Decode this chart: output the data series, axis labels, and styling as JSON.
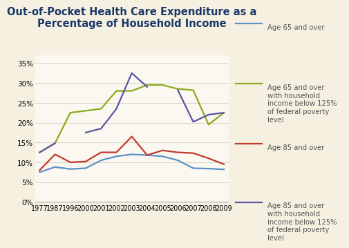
{
  "title": "Out-of-Pocket Health Care Expenditure as a\nPercentage of Household Income",
  "x_labels": [
    "1977",
    "1987",
    "1996",
    "2000",
    "2001",
    "2002",
    "2003",
    "2004",
    "2005",
    "2006",
    "2007",
    "2008",
    "2009"
  ],
  "series": [
    {
      "label": "Age 65 and over",
      "color": "#5b8fc9",
      "values": [
        7.5,
        8.8,
        8.3,
        8.5,
        10.5,
        11.5,
        12.0,
        11.8,
        11.5,
        10.5,
        8.5,
        8.4,
        8.2
      ]
    },
    {
      "label": "Age 65 and over\nwith household\nincome below 125%\nof federal poverty\nlevel",
      "color": "#8aaa1c",
      "values": [
        12.5,
        14.8,
        22.5,
        23.0,
        23.5,
        28.0,
        28.0,
        29.5,
        29.5,
        28.5,
        28.2,
        19.5,
        22.5
      ]
    },
    {
      "label": "Age 85 and over",
      "color": "#c0392b",
      "values": [
        8.0,
        12.0,
        10.0,
        10.2,
        12.5,
        12.5,
        16.5,
        11.8,
        13.0,
        12.5,
        12.3,
        11.0,
        9.5
      ]
    },
    {
      "label": "Age 85 and over\nwith household\nincome below 125%\nof federal poverty\nlevel",
      "color": "#5855a0",
      "values": [
        12.5,
        14.8,
        null,
        17.5,
        18.5,
        23.5,
        32.5,
        29.0,
        null,
        28.2,
        20.2,
        22.0,
        22.5
      ]
    }
  ],
  "ylim": [
    0,
    37
  ],
  "yticks": [
    0,
    5,
    10,
    15,
    20,
    25,
    30,
    35
  ],
  "ytick_labels": [
    "0%",
    "5%",
    "10%",
    "15%",
    "20%",
    "25%",
    "30%",
    "35%"
  ],
  "background_color": "#f5f0e0",
  "plot_bg_color": "#faf8f0",
  "title_color": "#1a3869",
  "legend_fontsize": 7.2,
  "title_fontsize": 10.5,
  "line_width": 1.6
}
